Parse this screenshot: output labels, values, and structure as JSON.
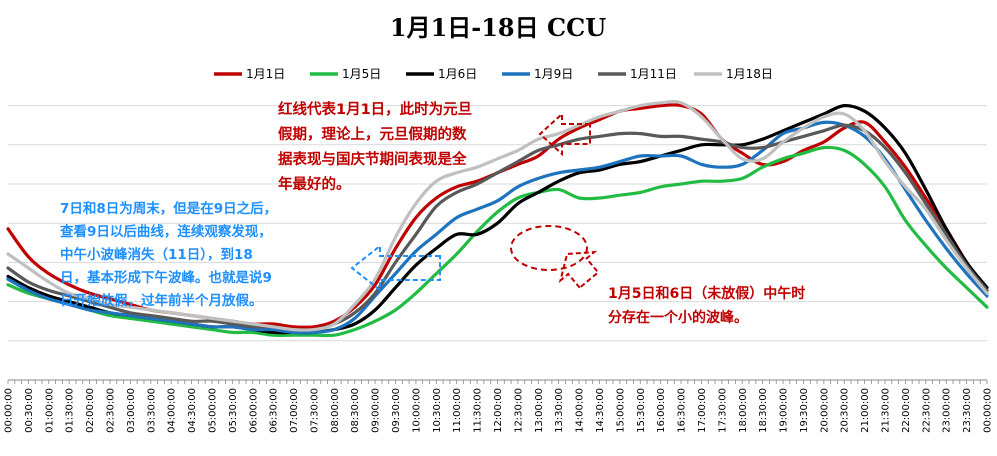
{
  "chart_data": {
    "type": "line",
    "title": "1月1日-18日 CCU",
    "xlabel": "",
    "ylabel": "",
    "y_axis_labels_shown": false,
    "ylim": [
      0,
      100
    ],
    "grid": "horizontal",
    "legend_position": "top",
    "x_tick_labels": [
      "00:00:00",
      "00:30:00",
      "01:00:00",
      "01:30:00",
      "02:00:00",
      "02:30:00",
      "03:00:00",
      "03:30:00",
      "04:00:00",
      "04:30:00",
      "05:00:00",
      "05:30:00",
      "06:00:00",
      "06:30:00",
      "07:00:00",
      "07:30:00",
      "08:00:00",
      "08:30:00",
      "09:00:00",
      "09:30:00",
      "10:00:00",
      "10:30:00",
      "11:00:00",
      "11:30:00",
      "12:00:00",
      "12:30:00",
      "13:00:00",
      "13:30:00",
      "14:00:00",
      "14:30:00",
      "15:00:00",
      "15:30:00",
      "16:00:00",
      "16:30:00",
      "17:00:00",
      "17:30:00",
      "18:00:00",
      "18:30:00",
      "19:00:00",
      "19:30:00",
      "20:00:00",
      "20:30:00",
      "21:00:00",
      "21:30:00",
      "22:00:00",
      "22:30:00",
      "23:00:00",
      "23:30:00",
      "00:00:00"
    ],
    "x_hours": [
      0,
      0.5,
      1,
      1.5,
      2,
      2.5,
      3,
      3.5,
      4,
      4.5,
      5,
      5.5,
      6,
      6.5,
      7,
      7.5,
      8,
      8.5,
      9,
      9.5,
      10,
      10.5,
      11,
      11.5,
      12,
      12.5,
      13,
      13.5,
      14,
      14.5,
      15,
      15.5,
      16,
      16.5,
      17,
      17.5,
      18,
      18.5,
      19,
      19.5,
      20,
      20.5,
      21,
      21.5,
      22,
      22.5,
      23,
      23.5,
      24
    ],
    "series_values_unit": "index (approximate, y-axis values not printed)",
    "series": [
      {
        "name": "1月1日",
        "color": "#c00000",
        "values": [
          54,
          44,
          38,
          34,
          31,
          29,
          27,
          25,
          24,
          23,
          22,
          21,
          20,
          20,
          19,
          19,
          21,
          26,
          34,
          47,
          58,
          65,
          69,
          71,
          74,
          77,
          80,
          86,
          90,
          93,
          96,
          97,
          98,
          98,
          95,
          86,
          81,
          77,
          78,
          82,
          85,
          90,
          92,
          85,
          76,
          65,
          54,
          42,
          32
        ]
      },
      {
        "name": "1月5日",
        "color": "#22bb44",
        "values": [
          34,
          31,
          29,
          27,
          25,
          23,
          22,
          21,
          20,
          19,
          18,
          17,
          17,
          16,
          16,
          16,
          16,
          18,
          21,
          25,
          31,
          38,
          45,
          53,
          60,
          65,
          67,
          68,
          65,
          65,
          66,
          67,
          69,
          70,
          71,
          71,
          72,
          76,
          79,
          81,
          83,
          82,
          77,
          69,
          57,
          48,
          40,
          33,
          26
        ]
      },
      {
        "name": "1月6日",
        "color": "#000000",
        "values": [
          37,
          33,
          30,
          28,
          26,
          24,
          23,
          22,
          21,
          20,
          19,
          19,
          18,
          17,
          17,
          17,
          18,
          20,
          25,
          33,
          41,
          47,
          52,
          52,
          56,
          63,
          67,
          71,
          74,
          75,
          77,
          78,
          80,
          82,
          84,
          84,
          84,
          86,
          89,
          92,
          95,
          98,
          96,
          90,
          81,
          68,
          54,
          42,
          33
        ]
      },
      {
        "name": "1月9日",
        "color": "#1e73be",
        "values": [
          36,
          32,
          29,
          27,
          25,
          24,
          23,
          22,
          21,
          20,
          19,
          19,
          18,
          18,
          17,
          17,
          18,
          22,
          30,
          38,
          46,
          52,
          58,
          61,
          64,
          69,
          72,
          74,
          75,
          76,
          78,
          80,
          80,
          80,
          77,
          76,
          77,
          82,
          88,
          90,
          92,
          91,
          87,
          79,
          68,
          57,
          47,
          38,
          30
        ]
      },
      {
        "name": "1月11日",
        "color": "#595959",
        "values": [
          40,
          35,
          32,
          30,
          28,
          26,
          24,
          23,
          22,
          21,
          21,
          20,
          19,
          19,
          18,
          18,
          20,
          24,
          31,
          42,
          52,
          62,
          67,
          70,
          74,
          78,
          82,
          84,
          86,
          87,
          88,
          88,
          87,
          87,
          86,
          85,
          83,
          83,
          85,
          87,
          89,
          91,
          89,
          83,
          74,
          63,
          52,
          41,
          32
        ]
      },
      {
        "name": "1月18日",
        "color": "#c0c0c0",
        "values": [
          45,
          40,
          35,
          31,
          29,
          27,
          26,
          25,
          24,
          23,
          22,
          21,
          20,
          19,
          18,
          18,
          20,
          27,
          36,
          51,
          63,
          71,
          74,
          76,
          79,
          82,
          86,
          88,
          91,
          94,
          96,
          98,
          99,
          99,
          94,
          86,
          79,
          79,
          85,
          90,
          94,
          95,
          89,
          78,
          69,
          61,
          50,
          40,
          31
        ]
      }
    ],
    "annotations": [
      {
        "lines": [
          "红线代表1月1日，此时为元旦",
          "假期，理论上，元旦假期的数",
          "据表现与国庆节期间表现是全",
          "年最好的。"
        ],
        "color": "#c00000"
      },
      {
        "lines": [
          "7日和8日为周末，但是在9日之后，",
          "查看9日以后曲线，连续观察发现，",
          "中午小波峰消失（11日），到18",
          "日，基本形成下午波峰。也就是说9",
          "日开始放假，过年前半个月放假。"
        ],
        "color": "#1e90ff"
      },
      {
        "lines": [
          "1月5日和6日（未放假）中午时",
          "分存在一个小的波峰。"
        ],
        "color": "#c00000"
      }
    ]
  }
}
